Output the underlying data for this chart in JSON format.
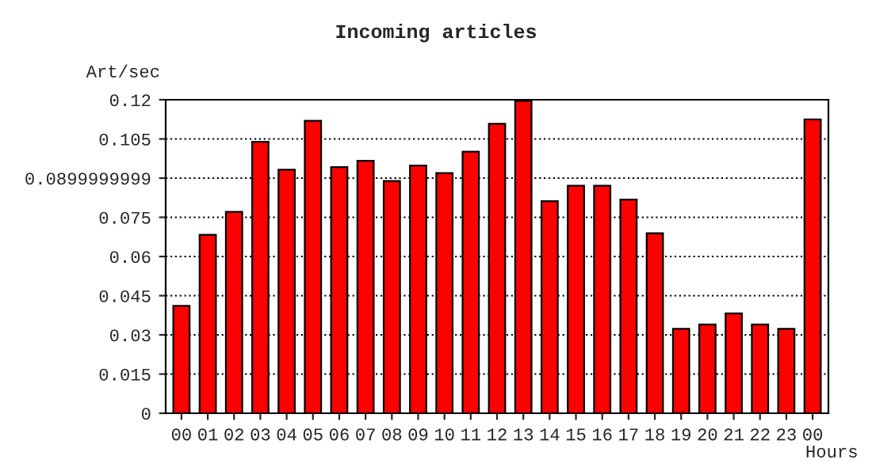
{
  "chart_data": {
    "type": "bar",
    "title": "Incoming articles",
    "ylabel": "Art/sec",
    "xlabel": "Hours",
    "categories": [
      "00",
      "01",
      "02",
      "03",
      "04",
      "05",
      "06",
      "07",
      "08",
      "09",
      "10",
      "11",
      "12",
      "13",
      "14",
      "15",
      "16",
      "17",
      "18",
      "19",
      "20",
      "21",
      "22",
      "23",
      "00"
    ],
    "values": [
      0.0411,
      0.0683,
      0.0771,
      0.1039,
      0.0932,
      0.1119,
      0.0942,
      0.0966,
      0.0889,
      0.0948,
      0.0919,
      0.1001,
      0.1108,
      0.1196,
      0.0812,
      0.0871,
      0.0871,
      0.0818,
      0.0689,
      0.0323,
      0.034,
      0.0382,
      0.034,
      0.0323,
      0.1125
    ],
    "color": "#ff0000",
    "ylim": [
      0,
      0.12
    ],
    "yticks": [
      0,
      0.015,
      0.03,
      0.045,
      0.06,
      0.075,
      0.0899999999,
      0.105,
      0.12
    ],
    "grid": "y",
    "line_style": "dotted"
  }
}
